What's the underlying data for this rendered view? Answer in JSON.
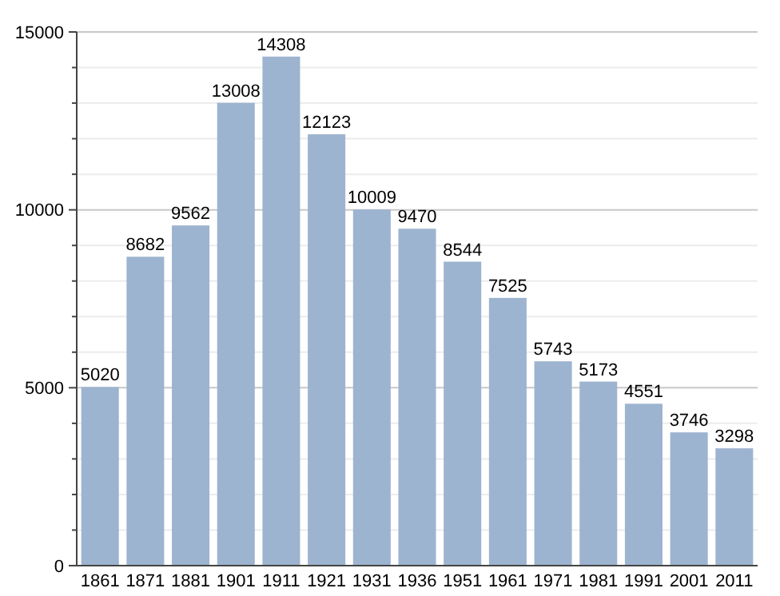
{
  "chart_data": {
    "type": "bar",
    "categories": [
      "1861",
      "1871",
      "1881",
      "1901",
      "1911",
      "1921",
      "1931",
      "1936",
      "1951",
      "1961",
      "1971",
      "1981",
      "1991",
      "2001",
      "2011"
    ],
    "values": [
      5020,
      8682,
      9562,
      13008,
      14308,
      12123,
      10009,
      9470,
      8544,
      7525,
      5743,
      5173,
      4551,
      3746,
      3298
    ],
    "color": "#9db4d0",
    "ylim": [
      0,
      15000
    ],
    "yticks": [
      0,
      {
        "value": 1000,
        "label": null
      },
      {
        "value": 2000,
        "label": null
      },
      {
        "value": 3000,
        "label": null
      },
      {
        "value": 4000,
        "label": null
      },
      5000,
      {
        "value": 6000,
        "label": null
      },
      {
        "value": 7000,
        "label": null
      },
      {
        "value": 8000,
        "label": null
      },
      {
        "value": 9000,
        "label": null
      },
      10000,
      {
        "value": 11000,
        "label": null
      },
      {
        "value": 12000,
        "label": null
      },
      {
        "value": 13000,
        "label": null
      },
      {
        "value": 14000,
        "label": null
      },
      15000
    ],
    "grid": "y",
    "data_labels": true
  }
}
